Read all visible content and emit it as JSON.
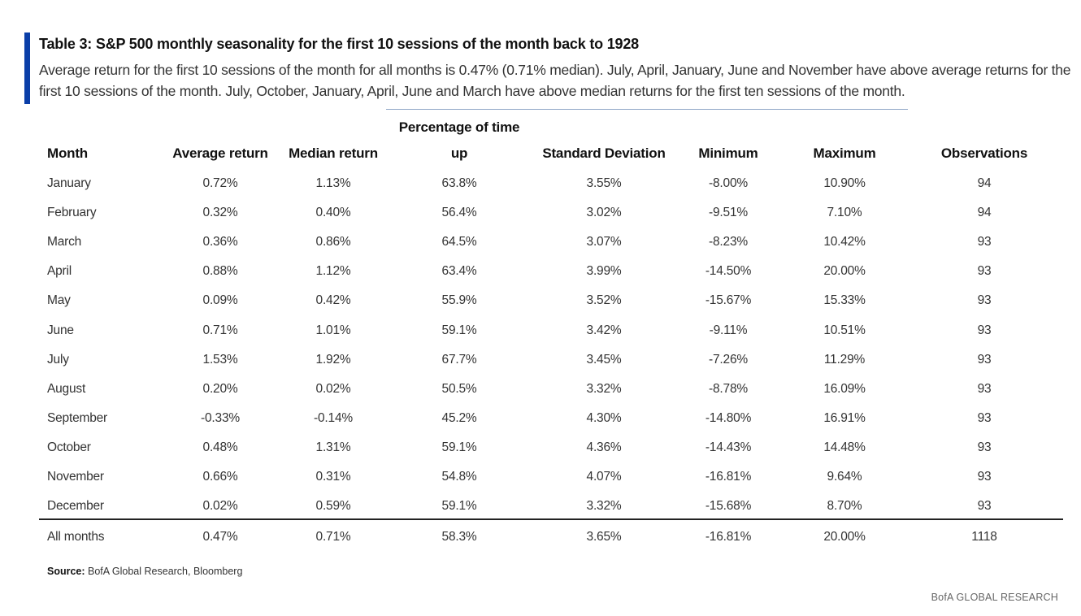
{
  "title": "Table 3: S&P 500 monthly seasonality for the first 10 sessions of the month back to 1928",
  "subtitle": "Average return for the first 10 sessions of the month for all months is 0.47% (0.71% median). July, April, January, June and November have above average returns for the first 10 sessions of the month. July, October, January, April, June and March have above median returns for the first ten sessions of the month.",
  "columns": {
    "month": "Month",
    "avg": "Average return",
    "median": "Median return",
    "pct_up_line1": "Percentage of time",
    "pct_up_line2": "up",
    "std": "Standard Deviation",
    "min": "Minimum",
    "max": "Maximum",
    "obs": "Observations"
  },
  "rows": [
    {
      "month": "January",
      "avg": "0.72%",
      "median": "1.13%",
      "pct_up": "63.8%",
      "std": "3.55%",
      "min": "-8.00%",
      "max": "10.90%",
      "obs": "94"
    },
    {
      "month": "February",
      "avg": "0.32%",
      "median": "0.40%",
      "pct_up": "56.4%",
      "std": "3.02%",
      "min": "-9.51%",
      "max": "7.10%",
      "obs": "94"
    },
    {
      "month": "March",
      "avg": "0.36%",
      "median": "0.86%",
      "pct_up": "64.5%",
      "std": "3.07%",
      "min": "-8.23%",
      "max": "10.42%",
      "obs": "93"
    },
    {
      "month": "April",
      "avg": "0.88%",
      "median": "1.12%",
      "pct_up": "63.4%",
      "std": "3.99%",
      "min": "-14.50%",
      "max": "20.00%",
      "obs": "93"
    },
    {
      "month": "May",
      "avg": "0.09%",
      "median": "0.42%",
      "pct_up": "55.9%",
      "std": "3.52%",
      "min": "-15.67%",
      "max": "15.33%",
      "obs": "93"
    },
    {
      "month": "June",
      "avg": "0.71%",
      "median": "1.01%",
      "pct_up": "59.1%",
      "std": "3.42%",
      "min": "-9.11%",
      "max": "10.51%",
      "obs": "93"
    },
    {
      "month": "July",
      "avg": "1.53%",
      "median": "1.92%",
      "pct_up": "67.7%",
      "std": "3.45%",
      "min": "-7.26%",
      "max": "11.29%",
      "obs": "93"
    },
    {
      "month": "August",
      "avg": "0.20%",
      "median": "0.02%",
      "pct_up": "50.5%",
      "std": "3.32%",
      "min": "-8.78%",
      "max": "16.09%",
      "obs": "93"
    },
    {
      "month": "September",
      "avg": "-0.33%",
      "median": "-0.14%",
      "pct_up": "45.2%",
      "std": "4.30%",
      "min": "-14.80%",
      "max": "16.91%",
      "obs": "93"
    },
    {
      "month": "October",
      "avg": "0.48%",
      "median": "1.31%",
      "pct_up": "59.1%",
      "std": "4.36%",
      "min": "-14.43%",
      "max": "14.48%",
      "obs": "93"
    },
    {
      "month": "November",
      "avg": "0.66%",
      "median": "0.31%",
      "pct_up": "54.8%",
      "std": "4.07%",
      "min": "-16.81%",
      "max": "9.64%",
      "obs": "93"
    },
    {
      "month": "December",
      "avg": "0.02%",
      "median": "0.59%",
      "pct_up": "59.1%",
      "std": "3.32%",
      "min": "-15.68%",
      "max": "8.70%",
      "obs": "93"
    }
  ],
  "total": {
    "month": "All months",
    "avg": "0.47%",
    "median": "0.71%",
    "pct_up": "58.3%",
    "std": "3.65%",
    "min": "-16.81%",
    "max": "20.00%",
    "obs": "1118"
  },
  "source": {
    "label": "Source:",
    "text": " BofA Global Research, Bloomberg"
  },
  "brand": "BofA GLOBAL RESEARCH",
  "colors": {
    "accent": "#0a3ea8",
    "text": "#333333",
    "rule": "#222222"
  }
}
